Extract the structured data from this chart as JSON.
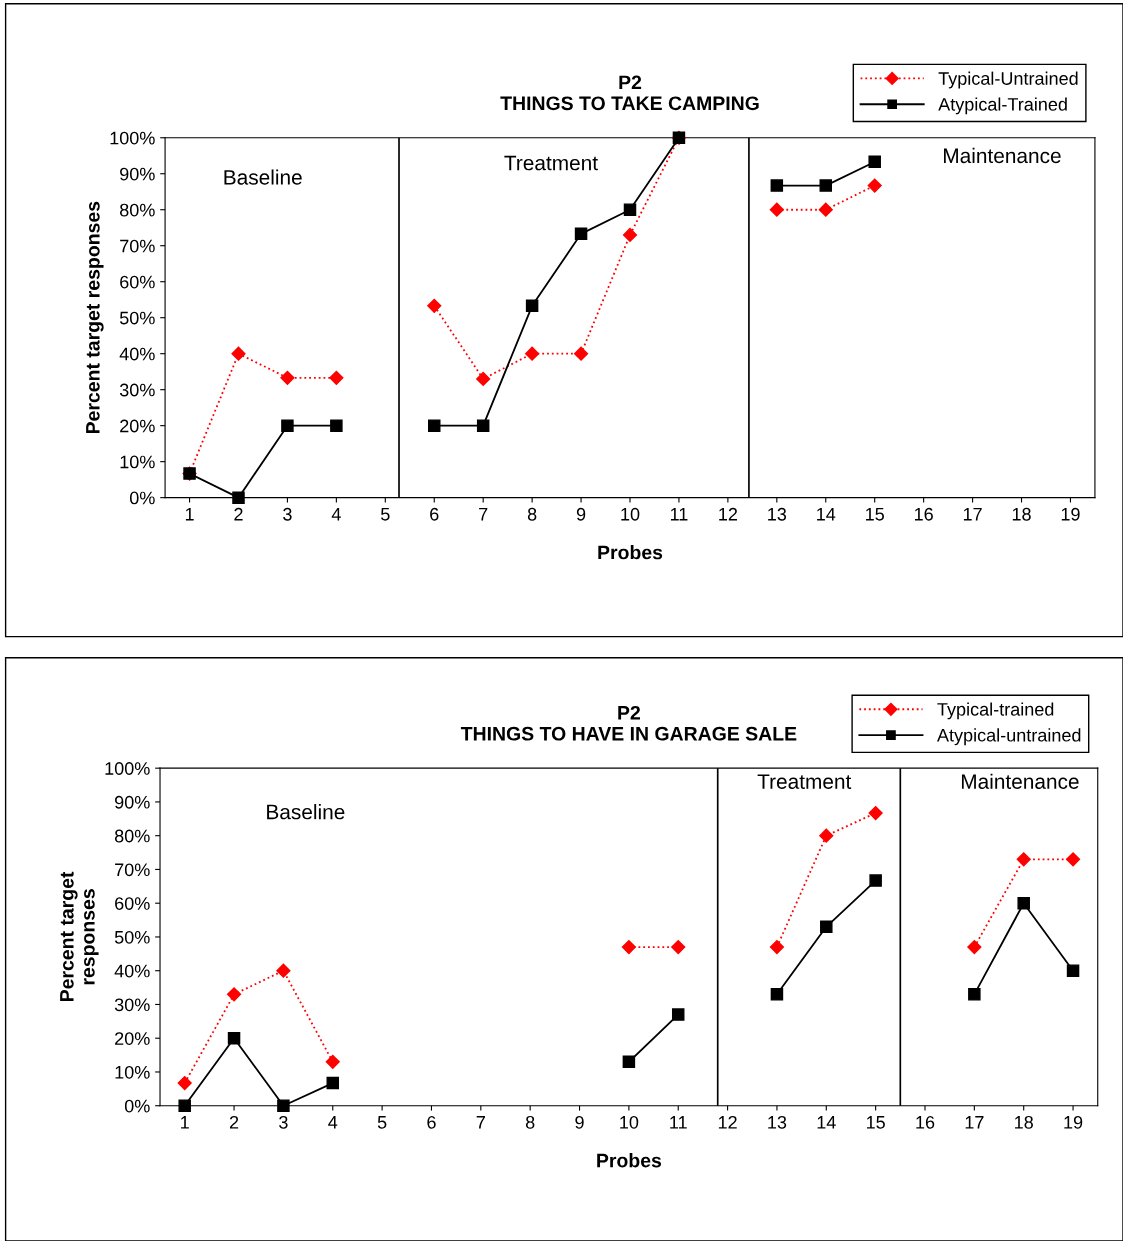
{
  "chart_data": [
    {
      "type": "line",
      "title": "P2\nTHINGS TO TAKE CAMPING",
      "xlabel": "Probes",
      "ylabel": "Percent target responses",
      "x": [
        1,
        2,
        3,
        4,
        5,
        6,
        7,
        8,
        9,
        10,
        11,
        12,
        13,
        14,
        15
      ],
      "series": [
        {
          "name": "Typical-Untrained",
          "color": "#ff0000",
          "marker": "diamond",
          "line_style": "dotted",
          "values": [
            6.7,
            40,
            33.3,
            33.3,
            null,
            53.3,
            33,
            40,
            40,
            73,
            100,
            null,
            80,
            80,
            86.7
          ]
        },
        {
          "name": "Atypical-Trained",
          "color": "#000000",
          "marker": "square",
          "line_style": "solid",
          "values": [
            6.7,
            0,
            20,
            20,
            null,
            20,
            20,
            53.3,
            73.3,
            80,
            100,
            null,
            86.7,
            86.7,
            93.3
          ]
        }
      ],
      "xlim": [
        0.5,
        19.5
      ],
      "xticks": [
        1,
        2,
        3,
        4,
        5,
        6,
        7,
        8,
        9,
        10,
        11,
        12,
        13,
        14,
        15,
        16,
        17,
        18,
        19
      ],
      "ylim": [
        0,
        100
      ],
      "yticks": [
        {
          "value": 0,
          "label": "0%"
        },
        {
          "value": 10,
          "label": "10%"
        },
        {
          "value": 20,
          "label": "20%"
        },
        {
          "value": 30,
          "label": "30%"
        },
        {
          "value": 40,
          "label": "40%"
        },
        {
          "value": 50,
          "label": "50%"
        },
        {
          "value": 60,
          "label": "60%"
        },
        {
          "value": 70,
          "label": "70%"
        },
        {
          "value": 80,
          "label": "80%"
        },
        {
          "value": 90,
          "label": "90%"
        },
        {
          "value": 100,
          "label": "100%"
        }
      ],
      "ref_lines": [
        {
          "axis": "x",
          "value": 5.28,
          "color": "#000000"
        },
        {
          "axis": "x",
          "value": 12.43,
          "color": "#000000"
        }
      ],
      "annotations": [
        "Baseline",
        "Treatment",
        "Maintenance"
      ],
      "grid": false,
      "legend": "top right"
    },
    {
      "type": "line",
      "title": "P2\nTHINGS TO HAVE IN GARAGE SALE",
      "xlabel": "Probes",
      "ylabel": "Percent target\nresponses",
      "x": [
        1,
        2,
        3,
        4,
        5,
        6,
        7,
        8,
        9,
        10,
        11,
        12,
        13,
        14,
        15,
        16,
        17,
        18,
        19
      ],
      "series": [
        {
          "name": "Typical-trained",
          "color": "#ff0000",
          "marker": "diamond",
          "line_style": "dotted",
          "values": [
            6.7,
            33,
            40,
            13,
            null,
            null,
            null,
            null,
            null,
            47,
            47,
            null,
            47,
            80,
            86.7,
            null,
            47,
            73,
            73
          ]
        },
        {
          "name": "Atypical-untrained",
          "color": "#000000",
          "marker": "square",
          "line_style": "solid",
          "values": [
            0,
            20,
            0,
            6.7,
            null,
            null,
            null,
            null,
            null,
            13,
            27,
            null,
            33,
            53,
            66.7,
            null,
            33,
            60,
            40
          ]
        }
      ],
      "xlim": [
        0.5,
        19.5
      ],
      "xticks": [
        1,
        2,
        3,
        4,
        5,
        6,
        7,
        8,
        9,
        10,
        11,
        12,
        13,
        14,
        15,
        16,
        17,
        18,
        19
      ],
      "ylim": [
        0,
        100
      ],
      "yticks": [
        {
          "value": 0,
          "label": "0%"
        },
        {
          "value": 10,
          "label": "10%"
        },
        {
          "value": 20,
          "label": "20%"
        },
        {
          "value": 30,
          "label": "30%"
        },
        {
          "value": 40,
          "label": "40%"
        },
        {
          "value": 50,
          "label": "50%"
        },
        {
          "value": 60,
          "label": "60%"
        },
        {
          "value": 70,
          "label": "70%"
        },
        {
          "value": 80,
          "label": "80%"
        },
        {
          "value": 90,
          "label": "90%"
        },
        {
          "value": 100,
          "label": "100%"
        }
      ],
      "ref_lines": [
        {
          "axis": "x",
          "value": 11.8,
          "color": "#000000"
        },
        {
          "axis": "x",
          "value": 15.5,
          "color": "#000000"
        }
      ],
      "annotations": [
        "Baseline",
        "Treatment",
        "Maintenance"
      ],
      "grid": false,
      "legend": "top right"
    }
  ]
}
